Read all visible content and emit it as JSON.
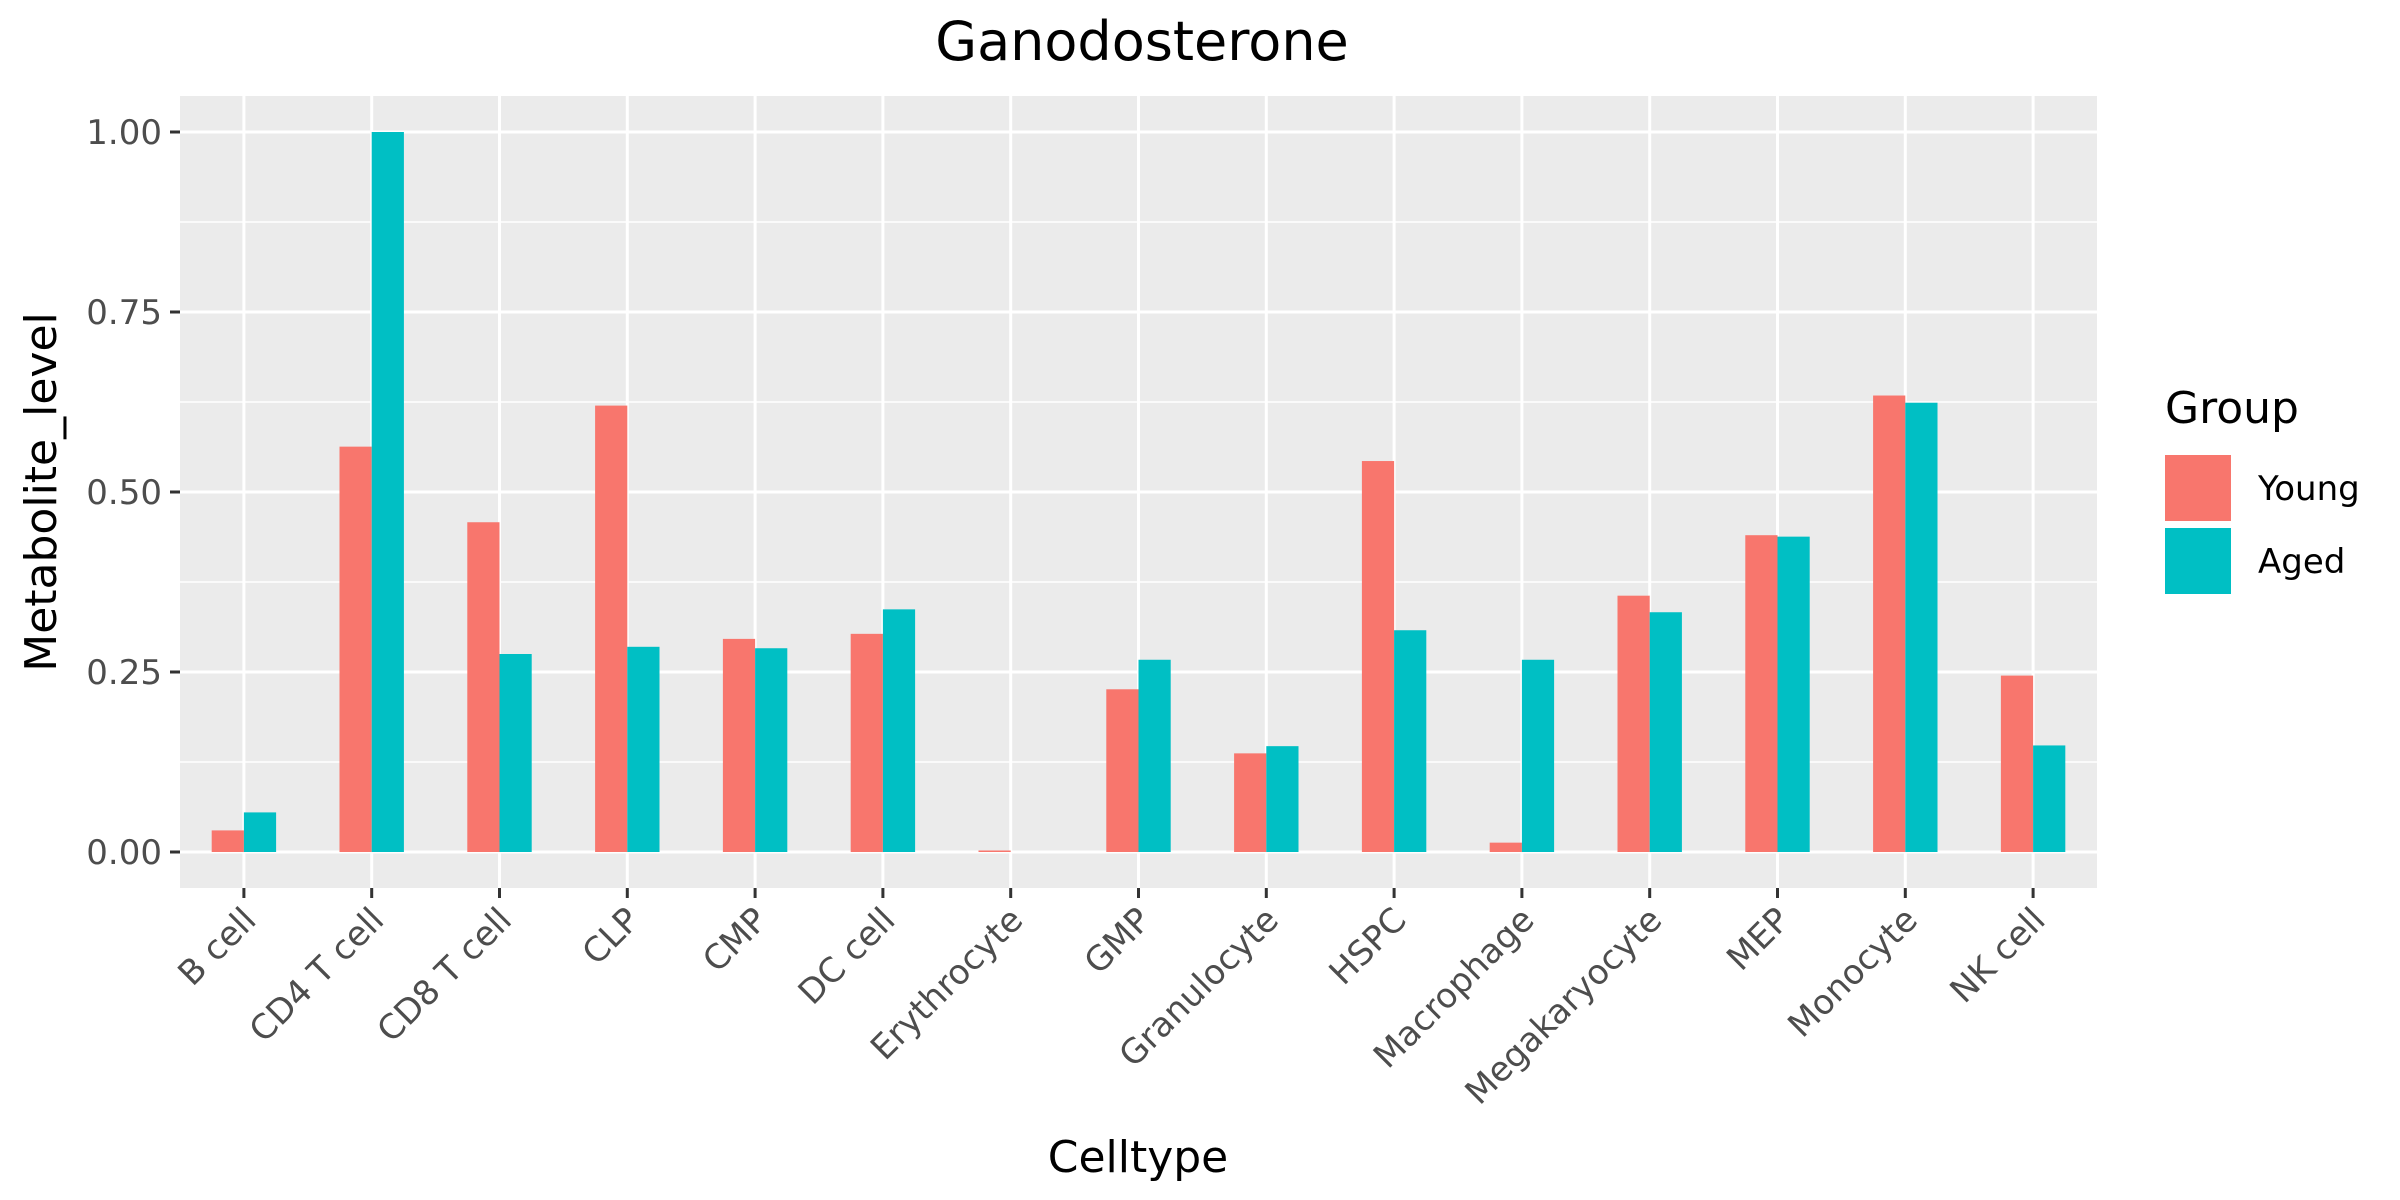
{
  "chart_data": {
    "type": "bar",
    "title": "Ganodosterone",
    "xlabel": "Celltype",
    "ylabel": "Metabolite_level",
    "categories": [
      "B cell",
      "CD4 T cell",
      "CD8 T cell",
      "CLP",
      "CMP",
      "DC cell",
      "Erythrocyte",
      "GMP",
      "Granulocyte",
      "HSPC",
      "Macrophage",
      "Megakaryocyte",
      "MEP",
      "Monocyte",
      "NK cell"
    ],
    "series": [
      {
        "name": "Young",
        "color": "#F8766D",
        "values": [
          0.03,
          0.563,
          0.458,
          0.62,
          0.296,
          0.303,
          0.002,
          0.226,
          0.137,
          0.543,
          0.013,
          0.356,
          0.44,
          0.634,
          0.245
        ]
      },
      {
        "name": "Aged",
        "color": "#00BFC4",
        "values": [
          0.055,
          1.0,
          0.275,
          0.285,
          0.283,
          0.337,
          0.0,
          0.267,
          0.147,
          0.308,
          0.267,
          0.333,
          0.438,
          0.624,
          0.148
        ]
      }
    ],
    "ylim": [
      -0.05,
      1.05
    ],
    "yticks": [
      0.0,
      0.25,
      0.5,
      0.75,
      1.0
    ],
    "ytick_labels": [
      "0.00",
      "0.25",
      "0.50",
      "0.75",
      "1.00"
    ],
    "legend_title": "Group",
    "legend_position": "right",
    "grid": true,
    "panel_background": "#EBEBEB"
  }
}
